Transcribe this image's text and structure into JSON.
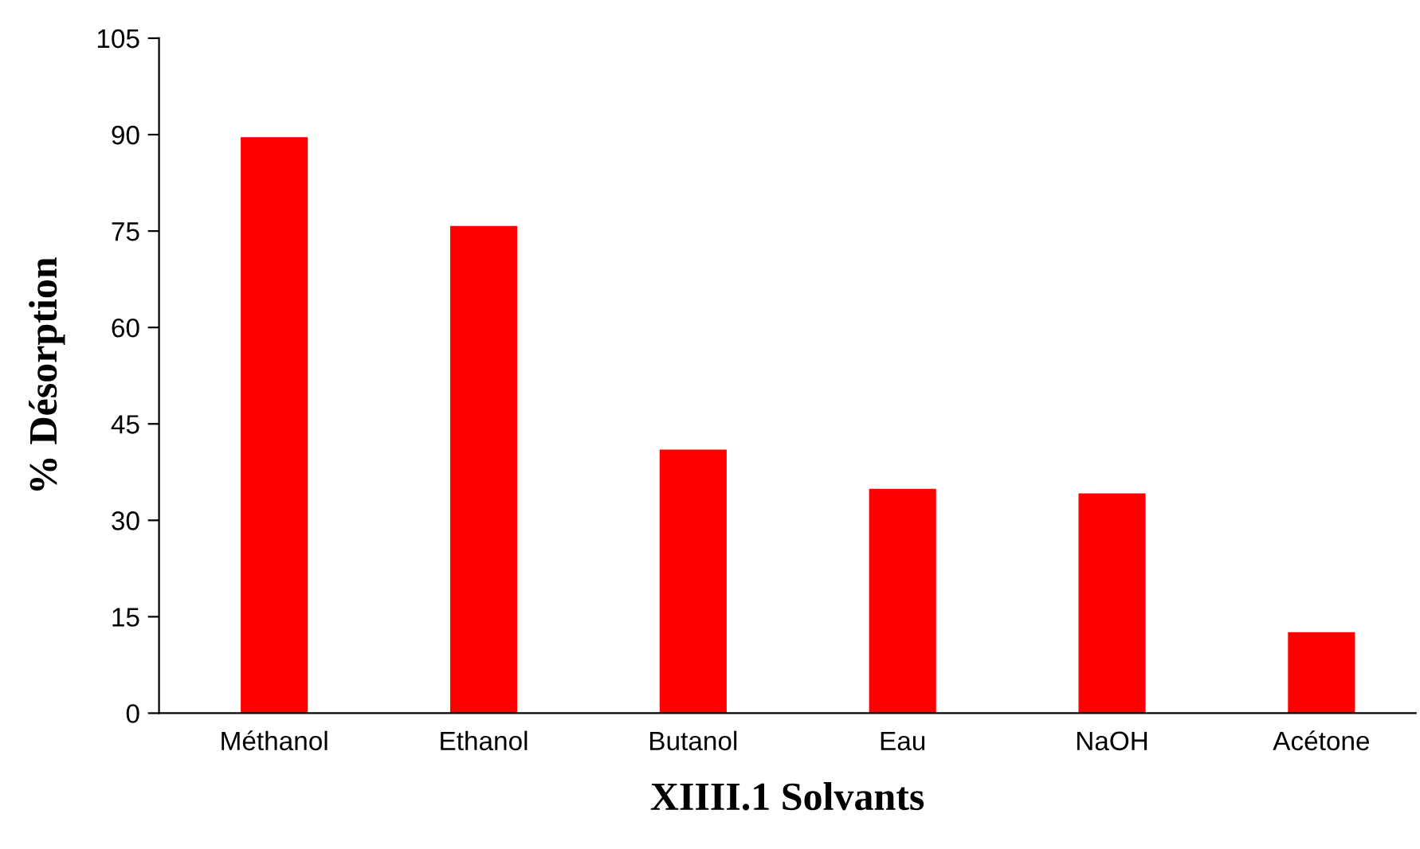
{
  "chart_data": {
    "type": "bar",
    "xlabel": "XIIII.1 Solvants",
    "ylabel": "% Désorption",
    "categories": [
      "Méthanol",
      "Ethanol",
      "Butanol",
      "Eau",
      "NaOH",
      "Acétone"
    ],
    "values": [
      89.6,
      75.8,
      41,
      34.9,
      34.2,
      12.6
    ],
    "color": "#ff0000",
    "ylim": [
      0,
      105
    ],
    "yticks": [
      0,
      15,
      30,
      45,
      60,
      75,
      90,
      105
    ],
    "grid": false,
    "legend": false
  }
}
